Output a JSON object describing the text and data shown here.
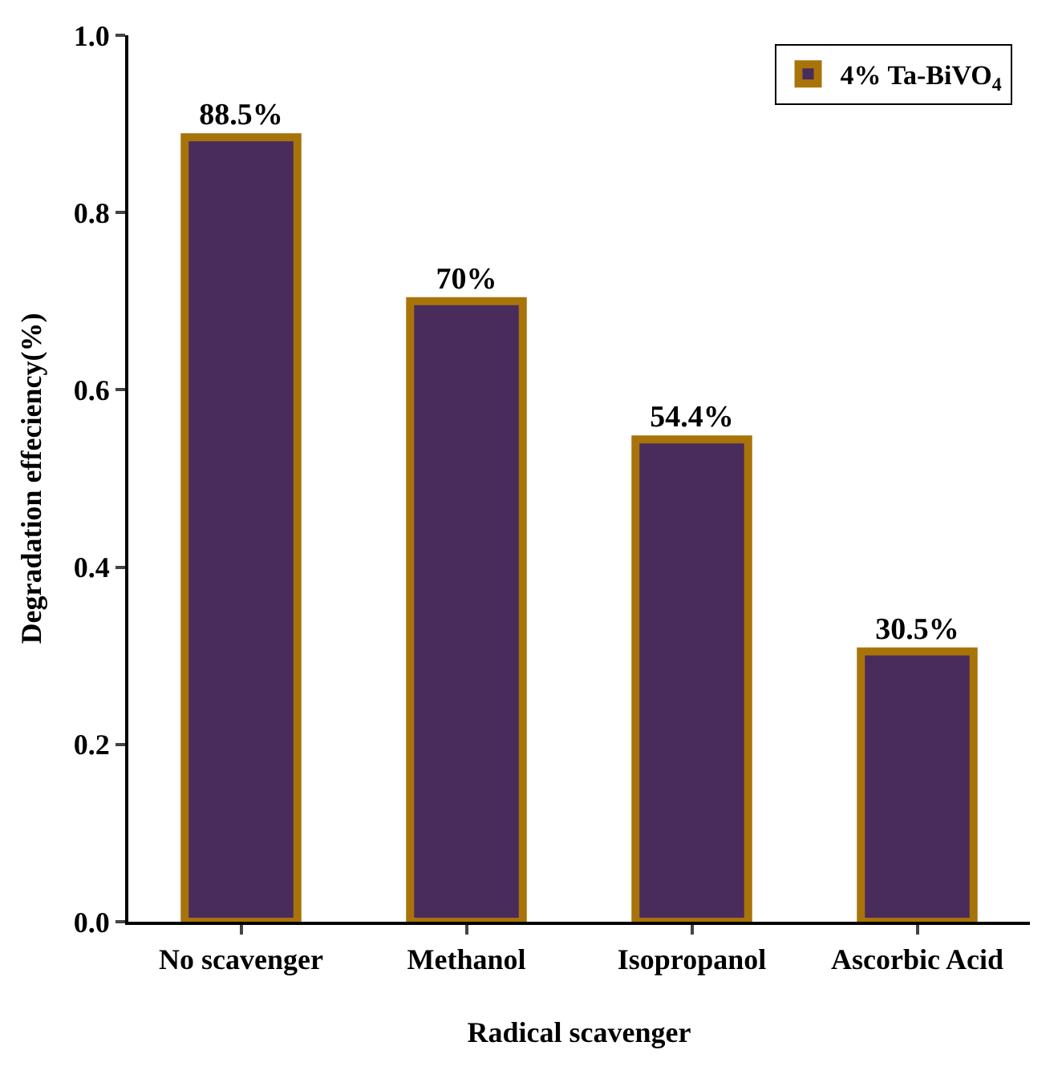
{
  "chart_data": {
    "type": "bar",
    "xlabel": "Radical scavenger",
    "ylabel": "Degradation effeciency(%)",
    "categories": [
      "No scavenger",
      "Methanol",
      "Isopropanol",
      "Ascorbic Acid"
    ],
    "series": [
      {
        "name": "4% Ta-BiVO$_{4}$",
        "color": "#4a2c5c",
        "values": [
          0.885,
          0.7,
          0.544,
          0.305
        ],
        "value_labels": [
          "88.5%",
          "70%",
          "54.4%",
          "30.5%"
        ]
      }
    ],
    "ylim": [
      0,
      1.0
    ],
    "yticks": [
      {
        "value": 0,
        "label": "0.0"
      },
      {
        "value": 0.2,
        "label": "0.2"
      },
      {
        "value": 0.4,
        "label": "0.4"
      },
      {
        "value": 0.6,
        "label": "0.6"
      },
      {
        "value": 0.8,
        "label": "0.8"
      },
      {
        "value": 1.0,
        "label": "1.0"
      }
    ],
    "legend": "top right"
  }
}
